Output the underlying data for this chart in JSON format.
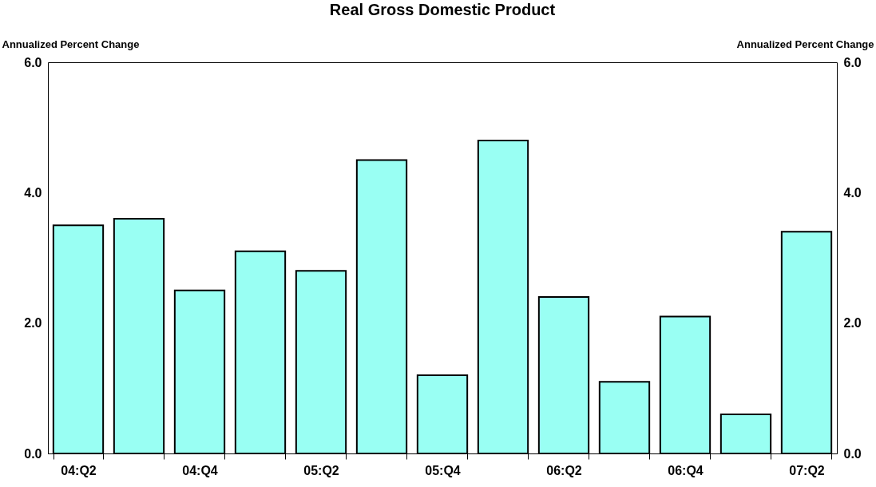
{
  "chart_data": {
    "type": "bar",
    "title": "Real Gross Domestic Product",
    "ylabel": "Annualized Percent Change",
    "y2label": "Annualized Percent Change",
    "categories": [
      "04:Q2",
      null,
      "04:Q4",
      null,
      "05:Q2",
      null,
      "05:Q4",
      null,
      "06:Q2",
      null,
      "06:Q4",
      null,
      "07:Q2"
    ],
    "values": [
      3.5,
      3.6,
      2.5,
      3.1,
      2.8,
      4.5,
      1.2,
      4.8,
      2.4,
      1.1,
      2.1,
      0.6,
      3.4
    ],
    "color": "#99fff3",
    "ylim": [
      0,
      6
    ],
    "yticks": [
      {
        "value": 0,
        "label": "0.0"
      },
      {
        "value": 2,
        "label": "2.0"
      },
      {
        "value": 4,
        "label": "4.0"
      },
      {
        "value": 6,
        "label": "6.0"
      }
    ],
    "y2lim": [
      0,
      6
    ],
    "y2ticks": [
      {
        "value": 0,
        "label": "0.0"
      },
      {
        "value": 2,
        "label": "2.0"
      },
      {
        "value": 4,
        "label": "4.0"
      },
      {
        "value": 6,
        "label": "6.0"
      }
    ]
  }
}
